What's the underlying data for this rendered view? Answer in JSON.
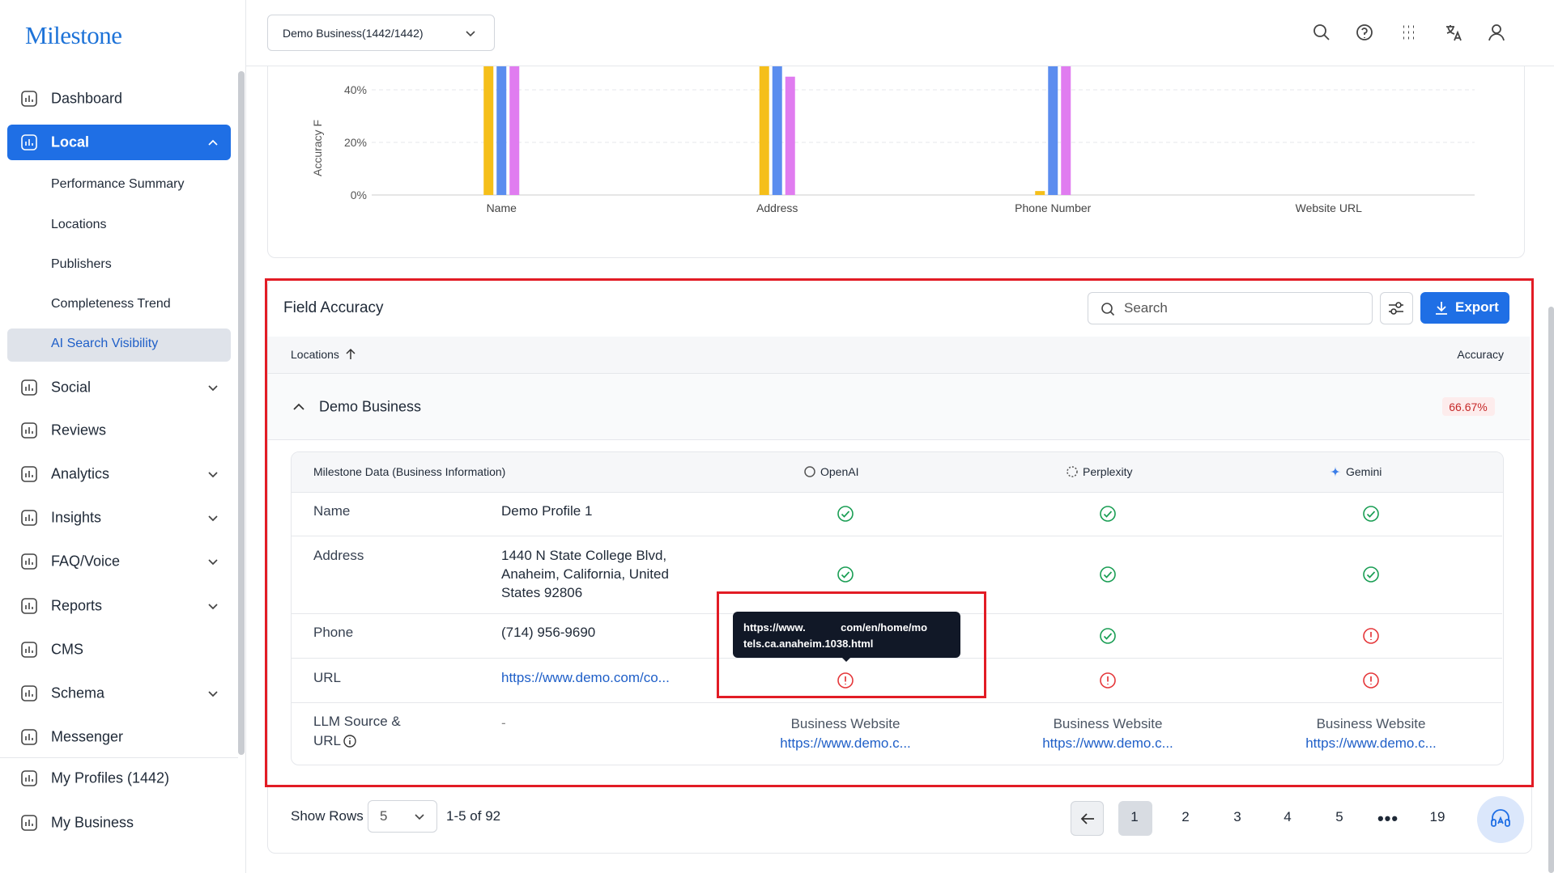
{
  "sidebar": {
    "logo": "Milestone",
    "menu": [
      "Dashboard",
      "Local",
      "Social",
      "Reviews",
      "Analytics",
      "Insights",
      "FAQ/Voice",
      "Reports",
      "CMS",
      "Schema",
      "Messenger",
      "My Profiles (1442)",
      "My Business"
    ],
    "local_items": [
      "Performance Summary",
      "Locations",
      "Publishers",
      "Completeness Trend",
      "AI Search Visibility"
    ]
  },
  "header": {
    "business_selector": "Demo Business(1442/1442)"
  },
  "chart_data": {
    "type": "bar",
    "y_label": "Accuracy F",
    "categories": [
      "Name",
      "Address",
      "Phone Number",
      "Website URL"
    ],
    "series": [
      {
        "color": "#f5bf1a",
        "values": [
          60,
          60,
          1.5,
          0
        ]
      },
      {
        "color": "#5b8def",
        "values": [
          60,
          60,
          60,
          0
        ]
      },
      {
        "color": "#e07cf0",
        "values": [
          60,
          45,
          60,
          0
        ]
      }
    ],
    "ylim": [
      0,
      100
    ],
    "yticks": [
      {
        "value": 0,
        "label": "0%"
      },
      {
        "value": 20,
        "label": "20%"
      },
      {
        "value": 40,
        "label": "40%"
      }
    ],
    "grid": true
  },
  "field_accuracy": {
    "title": "Field Accuracy",
    "search_placeholder": "Search",
    "export": "Export",
    "col_locations": "Locations",
    "col_accuracy": "Accuracy",
    "group": "Demo Business",
    "group_accuracy": "66.67%",
    "detail_header": "Milestone Data (Business Information)",
    "providers": [
      "OpenAI",
      "Perplexity",
      "Gemini"
    ],
    "rows": [
      {
        "label": "Name",
        "value": "Demo Profile 1",
        "status": [
          "ok",
          "ok",
          "ok"
        ]
      },
      {
        "label": "Address",
        "value": [
          "1440 N State College Blvd,",
          "Anaheim, California, United",
          "States 92806"
        ],
        "status": [
          "ok",
          "ok",
          "ok"
        ]
      },
      {
        "label": "Phone",
        "value": "(714) 956-9690",
        "status": [
          null,
          "ok",
          "error"
        ]
      },
      {
        "label": "URL",
        "value": "https://www.demo.com/co...",
        "status": [
          "error",
          "error",
          "error"
        ]
      }
    ],
    "source_row": {
      "label": [
        "LLM Source &",
        "URL"
      ],
      "value": "-",
      "sources": [
        {
          "type": "Business Website",
          "link": "https://www.demo.c..."
        },
        {
          "type": "Business Website",
          "link": "https://www.demo.c..."
        },
        {
          "type": "Business Website",
          "link": "https://www.demo.c..."
        }
      ]
    },
    "tooltip": [
      "https://www.            com/en/home/mo",
      "tels.ca.anaheim.1038.html"
    ]
  },
  "pagination": {
    "show_rows": "Show Rows",
    "rows_value": "5",
    "range": "1-5 of 92",
    "pages": [
      "1",
      "2",
      "3",
      "4",
      "5",
      "19"
    ]
  }
}
